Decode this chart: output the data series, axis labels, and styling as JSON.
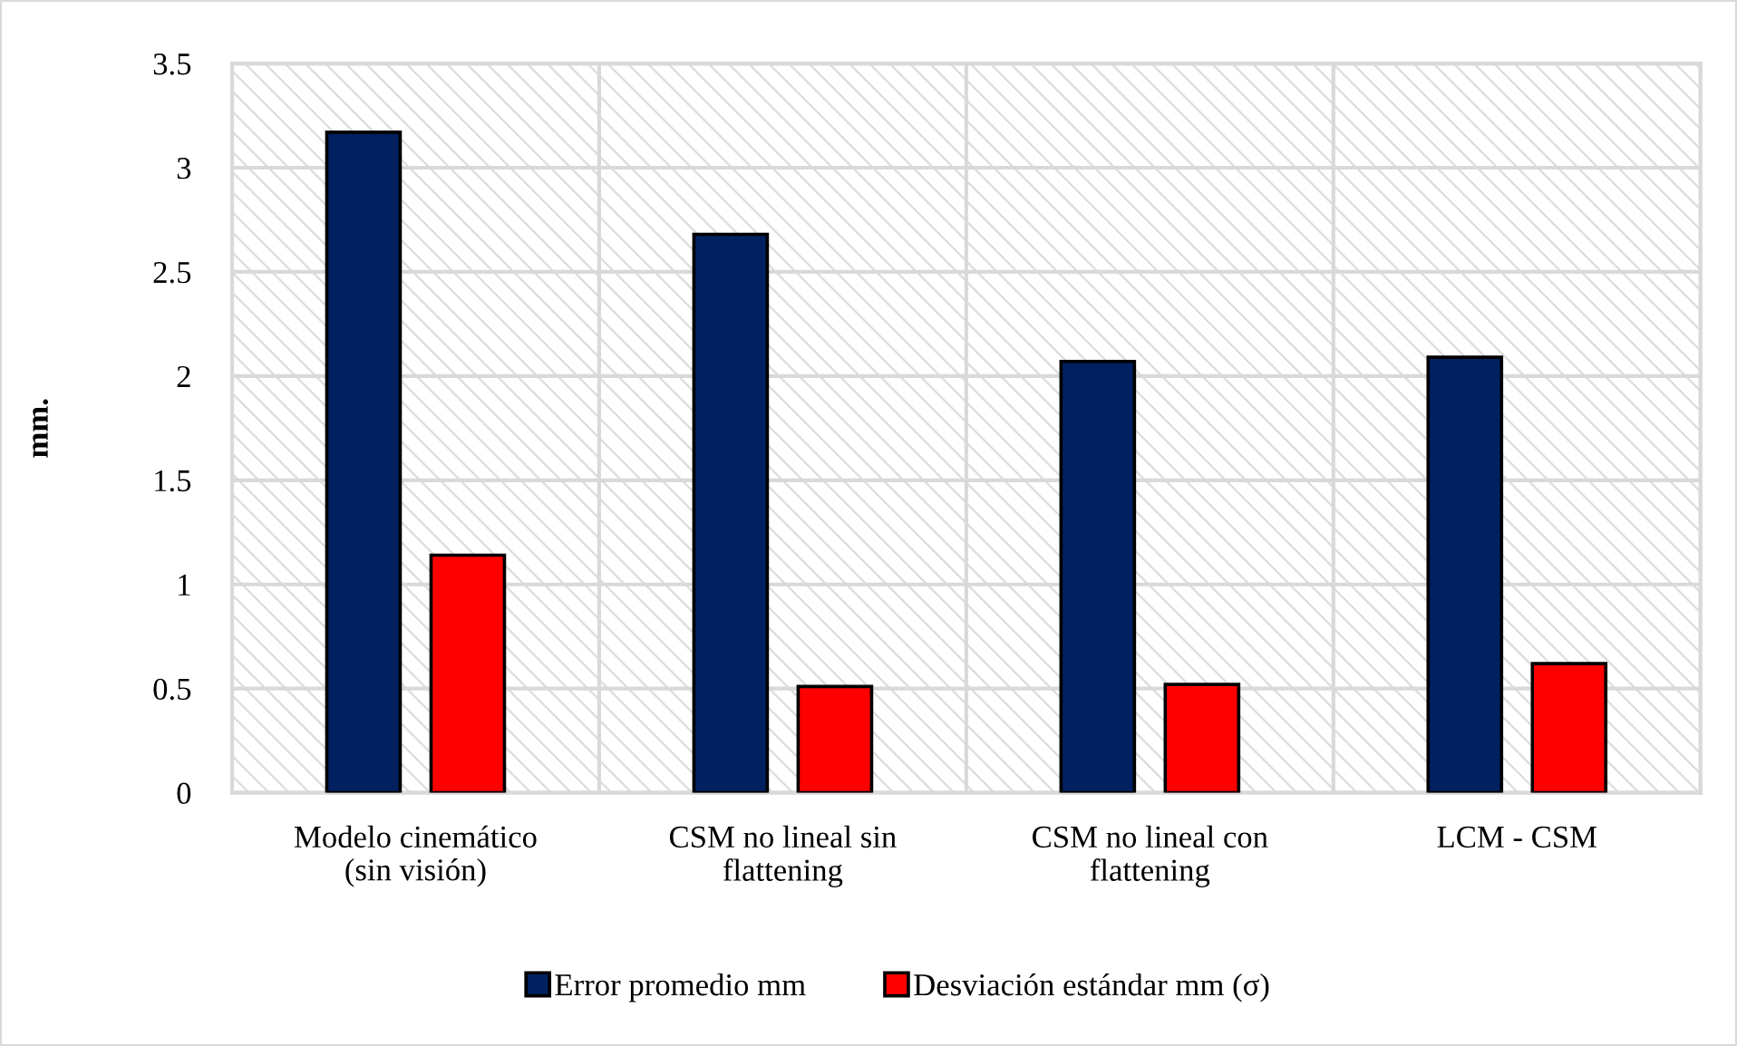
{
  "chart_data": {
    "type": "bar",
    "categories": [
      "Modelo cinemático\n(sin visión)",
      "CSM no lineal sin\nflattening",
      "CSM no lineal con\nflattening",
      "LCM - CSM"
    ],
    "series": [
      {
        "name": "Error promedio mm",
        "color": "#002060",
        "values": [
          3.17,
          2.68,
          2.07,
          2.09
        ]
      },
      {
        "name": "Desviación estándar mm (σ)",
        "color": "#ff0000",
        "values": [
          1.14,
          0.51,
          0.52,
          0.62
        ]
      }
    ],
    "ylabel": "mm.",
    "ylim": [
      0,
      3.5
    ],
    "yticks": [
      0,
      0.5,
      1,
      1.5,
      2,
      2.5,
      3,
      3.5
    ],
    "grid": true,
    "legend": "bottom"
  }
}
